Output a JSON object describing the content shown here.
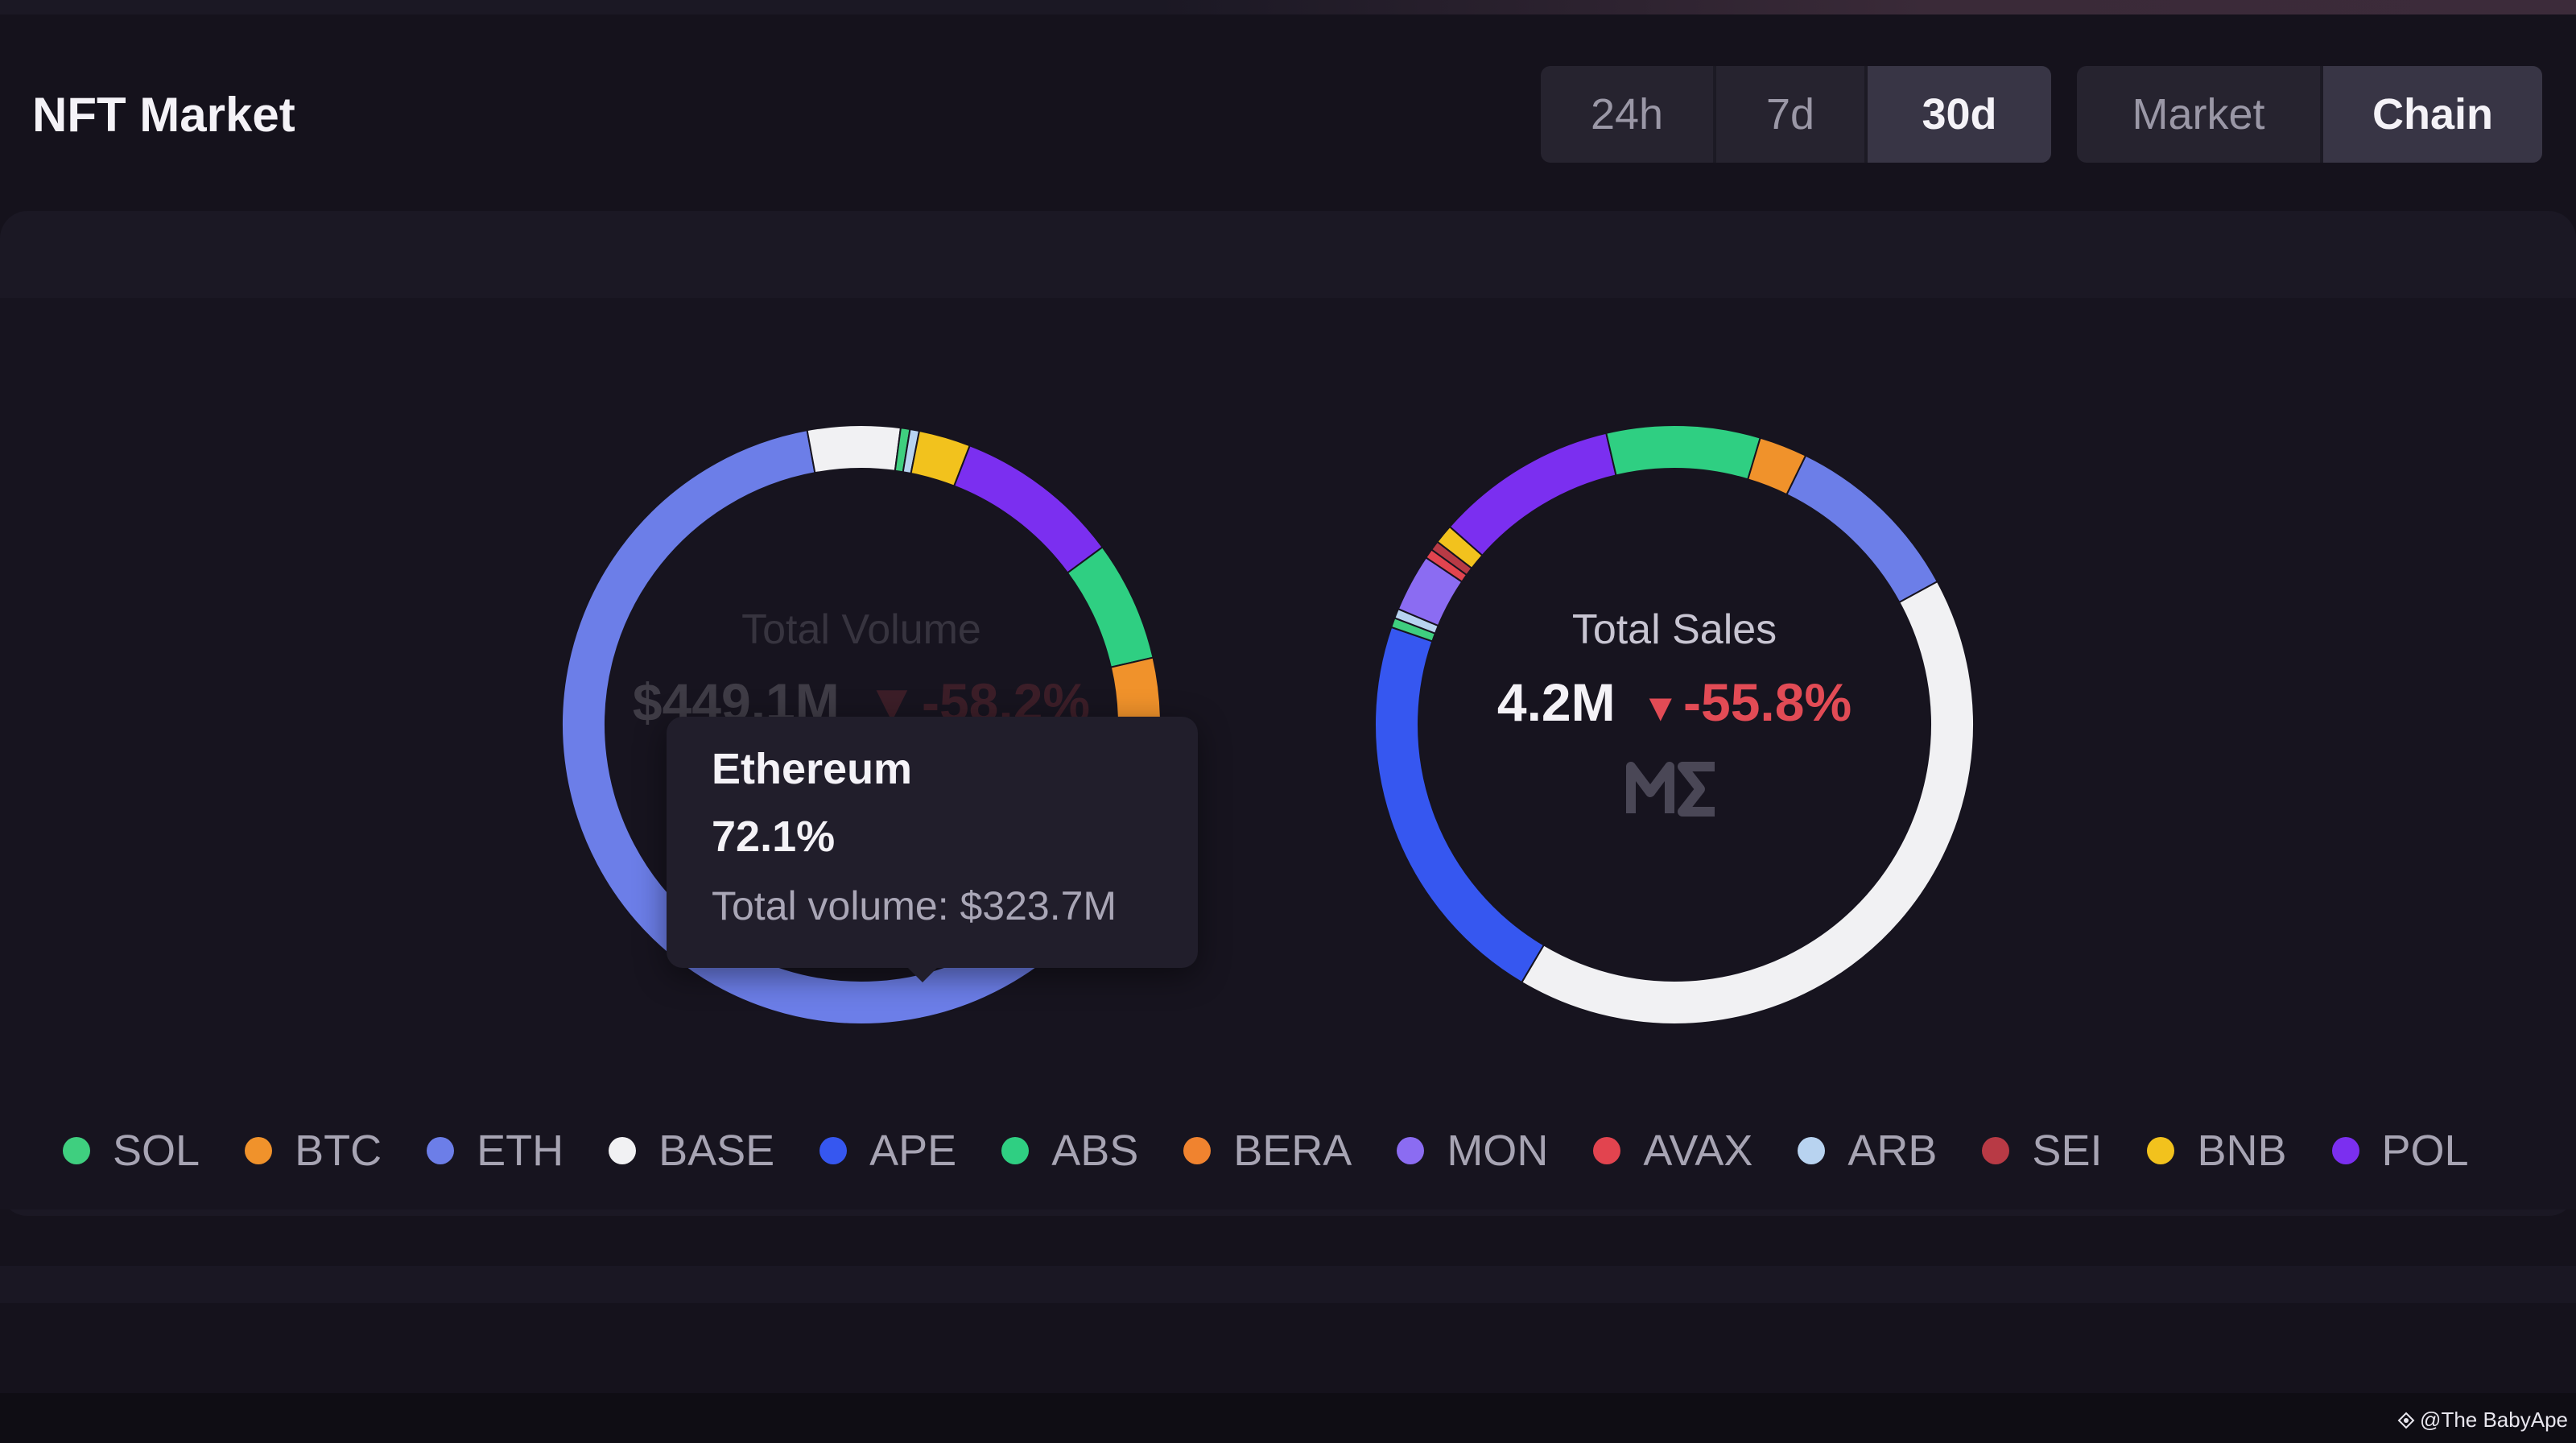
{
  "header": {
    "title": "NFT Market",
    "time_tabs": [
      {
        "label": "24h",
        "active": false
      },
      {
        "label": "7d",
        "active": false
      },
      {
        "label": "30d",
        "active": true
      }
    ],
    "view_tabs": [
      {
        "label": "Market",
        "active": false
      },
      {
        "label": "Chain",
        "active": true
      }
    ]
  },
  "chart_data": [
    {
      "type": "pie",
      "variant": "donut",
      "center_label": "Total Volume",
      "center_value": "$449.1M",
      "center_change": "-58.2%",
      "change_direction": "down",
      "slices": [
        {
          "label": "ETH",
          "value": 72.1
        },
        {
          "label": "BASE",
          "value": 5.0
        },
        {
          "label": "SOL",
          "value": 0.5
        },
        {
          "label": "ARB",
          "value": 0.5
        },
        {
          "label": "BNB",
          "value": 2.8
        },
        {
          "label": "POL",
          "value": 9.0
        },
        {
          "label": "ABS",
          "value": 6.5
        },
        {
          "label": "BTC",
          "value": 3.6
        }
      ],
      "tooltip": {
        "name": "Ethereum",
        "percent": "72.1%",
        "detail": "Total volume: $323.7M"
      }
    },
    {
      "type": "pie",
      "variant": "donut",
      "center_label": "Total Sales",
      "center_value": "4.2M",
      "center_change": "-55.8%",
      "change_direction": "down",
      "slices": [
        {
          "label": "ETH",
          "value": 9.5
        },
        {
          "label": "BASE",
          "value": 40.0
        },
        {
          "label": "APE",
          "value": 21.0
        },
        {
          "label": "SOL",
          "value": 0.5
        },
        {
          "label": "ARB",
          "value": 0.5
        },
        {
          "label": "MON",
          "value": 3.0
        },
        {
          "label": "AVAX",
          "value": 0.5
        },
        {
          "label": "SEI",
          "value": 0.5
        },
        {
          "label": "BNB",
          "value": 1.0
        },
        {
          "label": "POL",
          "value": 9.5
        },
        {
          "label": "ABS",
          "value": 8.0
        },
        {
          "label": "BTC",
          "value": 2.5
        }
      ]
    }
  ],
  "legend": [
    {
      "label": "SOL",
      "color": "#3fcf7f"
    },
    {
      "label": "BTC",
      "color": "#f0922b"
    },
    {
      "label": "ETH",
      "color": "#6c7ee8"
    },
    {
      "label": "BASE",
      "color": "#f1f1f3"
    },
    {
      "label": "APE",
      "color": "#3657f0"
    },
    {
      "label": "ABS",
      "color": "#2fcf82"
    },
    {
      "label": "BERA",
      "color": "#f0832f"
    },
    {
      "label": "MON",
      "color": "#8b6cf2"
    },
    {
      "label": "AVAX",
      "color": "#e2444f"
    },
    {
      "label": "ARB",
      "color": "#b8d3f0"
    },
    {
      "label": "SEI",
      "color": "#b83a45"
    },
    {
      "label": "BNB",
      "color": "#f2c21d"
    },
    {
      "label": "POL",
      "color": "#7b2ff0"
    }
  ],
  "logo_text": "ME",
  "watermark": "@The BabyApe"
}
